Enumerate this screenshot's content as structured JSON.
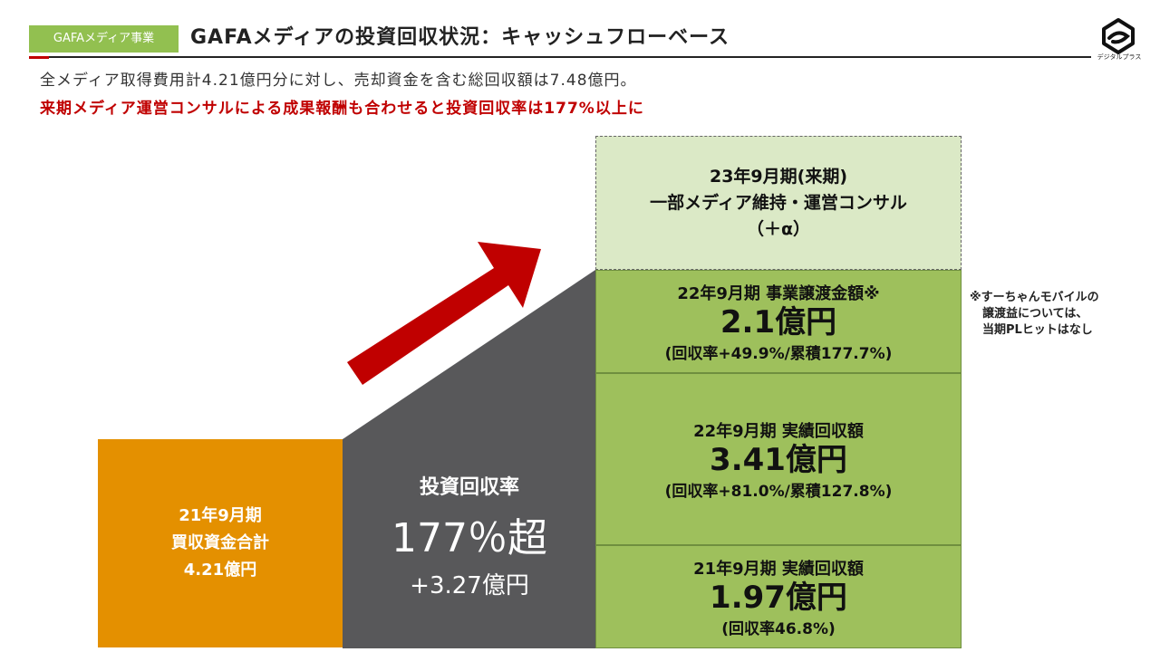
{
  "header": {
    "tag": "GAFAメディア事業",
    "title": "GAFAメディアの投資回収状況：キャッシュフローベース",
    "logo_text": "デジタルプラス"
  },
  "subtitle": {
    "line1": "全メディア取得費用計4.21億円分に対し、売却資金を含む総回収額は7.48億円。",
    "line2": "来期メディア運営コンサルによる成果報酬も合わせると投資回収率は177%以上に"
  },
  "investment": {
    "period": "21年9月期",
    "label": "買収資金合計",
    "amount": "4.21億円"
  },
  "recovery_rate": {
    "label": "投資回収率",
    "rate": "177％超",
    "amount": "+3.27億円"
  },
  "future": {
    "line1": "23年9月期(来期)",
    "line2": "一部メディア維持・運営コンサル",
    "line3": "（＋α）"
  },
  "blocks": {
    "transfer": {
      "title": "22年9月期 事業譲渡金額※",
      "value": "2.1億円",
      "detail": "(回収率+49.9%/累積177.7%)"
    },
    "fy22": {
      "title": "22年9月期 実績回収額",
      "value": "3.41億円",
      "detail": "(回収率+81.0%/累積127.8%)"
    },
    "fy21": {
      "title": "21年9月期 実績回収額",
      "value": "1.97億円",
      "detail": "(回収率46.8%)"
    }
  },
  "note": {
    "line1": "※すーちゃんモバイルの",
    "line2": "譲渡益については、",
    "line3": "当期PLヒットはなし"
  },
  "colors": {
    "accent_green": "#92c050",
    "investment_orange": "#e49000",
    "dark_gray": "#58585a",
    "arrow_red": "#c00000",
    "future_green": "#dbe9c6",
    "block_green": "#9ec05c"
  }
}
